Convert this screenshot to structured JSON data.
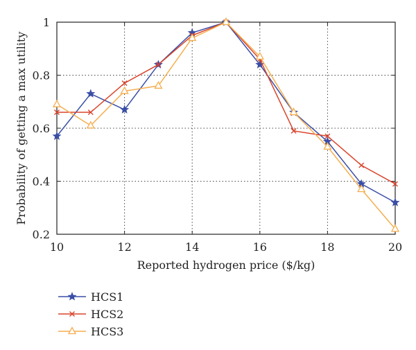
{
  "chart_data": {
    "type": "line",
    "xlabel": "Reported hydrogen price ($/kg)",
    "ylabel": "Probability of getting a max utility",
    "xlim": [
      10,
      20
    ],
    "ylim": [
      0.2,
      1.0
    ],
    "x": [
      10,
      11,
      12,
      13,
      14,
      15,
      16,
      17,
      18,
      19,
      20
    ],
    "xticks": [
      "10",
      "12",
      "14",
      "16",
      "18",
      "20"
    ],
    "yticks": [
      "0.2",
      "0.4",
      "0.6",
      "0.8",
      "1"
    ],
    "grid": true,
    "legend_placement": "below",
    "series": [
      {
        "name": "HCS1",
        "color": "#3a4ea6",
        "marker": "star",
        "values": [
          0.57,
          0.73,
          0.67,
          0.84,
          0.96,
          1.0,
          0.84,
          0.66,
          0.55,
          0.39,
          0.32
        ]
      },
      {
        "name": "HCS2",
        "color": "#d9442b",
        "marker": "x",
        "values": [
          0.66,
          0.66,
          0.77,
          0.84,
          0.95,
          1.0,
          0.86,
          0.59,
          0.57,
          0.46,
          0.39
        ]
      },
      {
        "name": "HCS3",
        "color": "#f5ae4f",
        "marker": "triangle",
        "values": [
          0.69,
          0.61,
          0.74,
          0.76,
          0.94,
          1.0,
          0.87,
          0.66,
          0.53,
          0.37,
          0.22
        ]
      }
    ]
  }
}
